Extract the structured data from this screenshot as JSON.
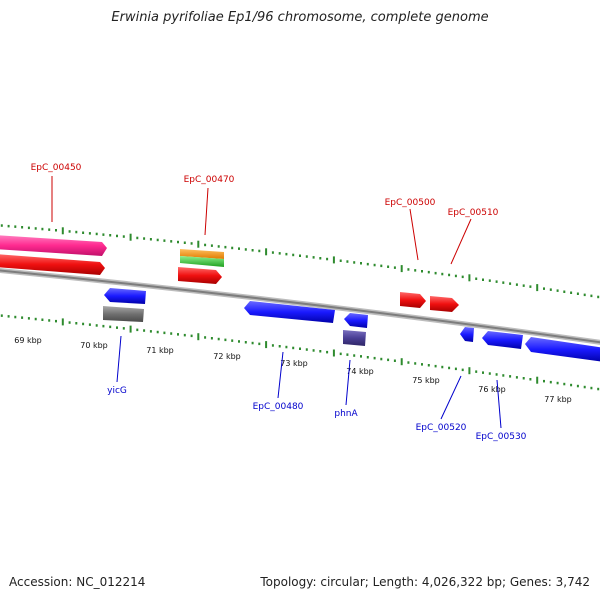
{
  "title": "Erwinia pyrifoliae Ep1/96 chromosome, complete genome",
  "accession": "Accession: NC_012214",
  "summary": "Topology: circular; Length: 4,026,322 bp; Genes: 3,742",
  "colors": {
    "backbone": "#8a8a8a",
    "tick": "#2e8b2e",
    "top_label": "#cc0000",
    "bottom_label": "#0000cc"
  },
  "scale_labels": [
    "69 kbp",
    "70 kbp",
    "71 kbp",
    "72 kbp",
    "73 kbp",
    "74 kbp",
    "75 kbp",
    "76 kbp",
    "77 kbp"
  ],
  "top_labels": [
    "EpC_00450",
    "EpC_00470",
    "EpC_00500",
    "EpC_00510"
  ],
  "bottom_labels": [
    "yicG",
    "EpC_00480",
    "phnA",
    "EpC_00520",
    "EpC_00530"
  ],
  "feature_colors": [
    "pink",
    "red",
    "orange",
    "green",
    "blue",
    "gray",
    "indigo"
  ]
}
